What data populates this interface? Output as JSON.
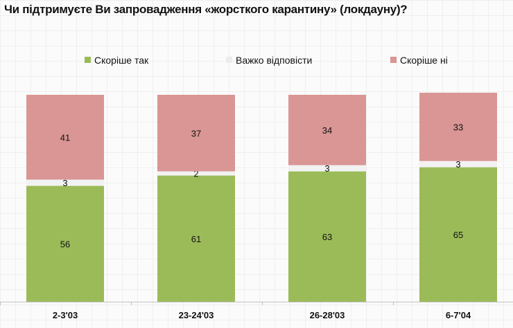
{
  "chart_data": {
    "type": "bar",
    "stacked": true,
    "title": "Чи підтримуєте Ви запровадження «жорсткого карантину» (локдауну)?",
    "categories": [
      "2-3'03",
      "23-24'03",
      "26-28'03",
      "6-7'04"
    ],
    "series": [
      {
        "name": "Скоріше так",
        "color": "#9bbb59",
        "values": [
          56,
          61,
          63,
          65
        ]
      },
      {
        "name": "Важко відповісти",
        "color": "#f2f2f2",
        "values": [
          3,
          2,
          3,
          3
        ]
      },
      {
        "name": "Скоріше ні",
        "color": "#d99694",
        "values": [
          41,
          37,
          34,
          33
        ]
      }
    ],
    "ylim": [
      0,
      100
    ],
    "legend": "top",
    "grid": false
  }
}
